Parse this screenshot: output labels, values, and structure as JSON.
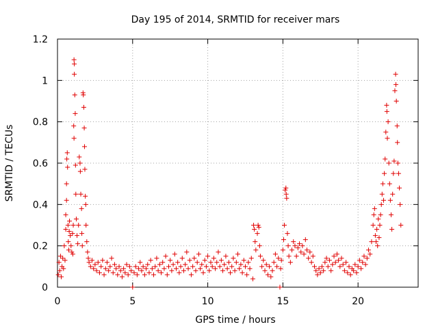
{
  "chart_data": {
    "type": "scatter",
    "title": "Day 195 of 2014, SRMTID for receiver mars",
    "xlabel": "GPS time / hours",
    "ylabel": "SRMTID / TECUs",
    "xlim": [
      0,
      24
    ],
    "ylim": [
      0,
      1.2
    ],
    "xticks": [
      0,
      5,
      10,
      15,
      20
    ],
    "xtick_labels": [
      "0",
      "5",
      "10",
      "15",
      "20"
    ],
    "yticks": [
      0,
      0.2,
      0.4,
      0.6,
      0.8,
      1.0,
      1.2
    ],
    "ytick_labels": [
      "0",
      "0.2",
      "0.4",
      "0.6",
      "0.8",
      "1",
      "1.2"
    ],
    "grid": true,
    "marker": "+",
    "color": "#e00000",
    "series": [
      {
        "name": "SRMTID",
        "points": [
          [
            0.05,
            0.06
          ],
          [
            0.1,
            0.12
          ],
          [
            0.15,
            0.08
          ],
          [
            0.2,
            0.15
          ],
          [
            0.25,
            0.05
          ],
          [
            0.3,
            0.1
          ],
          [
            0.35,
            0.14
          ],
          [
            0.4,
            0.09
          ],
          [
            0.45,
            0.2
          ],
          [
            0.5,
            0.13
          ],
          [
            0.55,
            0.35
          ],
          [
            0.55,
            0.28
          ],
          [
            0.6,
            0.5
          ],
          [
            0.6,
            0.42
          ],
          [
            0.62,
            0.62
          ],
          [
            0.65,
            0.65
          ],
          [
            0.67,
            0.58
          ],
          [
            0.7,
            0.3
          ],
          [
            0.72,
            0.22
          ],
          [
            0.75,
            0.18
          ],
          [
            0.78,
            0.27
          ],
          [
            0.8,
            0.32
          ],
          [
            0.85,
            0.25
          ],
          [
            0.9,
            0.2
          ],
          [
            0.95,
            0.17
          ],
          [
            1.0,
            0.26
          ],
          [
            1.02,
            0.16
          ],
          [
            1.05,
            0.3
          ],
          [
            1.08,
            0.78
          ],
          [
            1.1,
            0.72
          ],
          [
            1.1,
            1.1
          ],
          [
            1.12,
            1.08
          ],
          [
            1.12,
            1.03
          ],
          [
            1.15,
            0.93
          ],
          [
            1.18,
            0.84
          ],
          [
            1.2,
            0.59
          ],
          [
            1.22,
            0.45
          ],
          [
            1.25,
            0.33
          ],
          [
            1.3,
            0.25
          ],
          [
            1.35,
            0.21
          ],
          [
            1.4,
            0.3
          ],
          [
            1.45,
            0.63
          ],
          [
            1.5,
            0.6
          ],
          [
            1.52,
            0.56
          ],
          [
            1.55,
            0.45
          ],
          [
            1.6,
            0.38
          ],
          [
            1.62,
            0.26
          ],
          [
            1.65,
            0.2
          ],
          [
            1.7,
            0.94
          ],
          [
            1.72,
            0.93
          ],
          [
            1.75,
            0.87
          ],
          [
            1.78,
            0.77
          ],
          [
            1.8,
            0.68
          ],
          [
            1.82,
            0.57
          ],
          [
            1.85,
            0.44
          ],
          [
            1.88,
            0.4
          ],
          [
            1.9,
            0.3
          ],
          [
            1.95,
            0.22
          ],
          [
            2.0,
            0.17
          ],
          [
            2.05,
            0.14
          ],
          [
            2.1,
            0.12
          ],
          [
            2.2,
            0.1
          ],
          [
            2.3,
            0.13
          ],
          [
            2.4,
            0.09
          ],
          [
            2.5,
            0.11
          ],
          [
            2.6,
            0.08
          ],
          [
            2.7,
            0.12
          ],
          [
            2.8,
            0.07
          ],
          [
            2.9,
            0.1
          ],
          [
            3.0,
            0.13
          ],
          [
            3.1,
            0.06
          ],
          [
            3.2,
            0.09
          ],
          [
            3.3,
            0.12
          ],
          [
            3.4,
            0.08
          ],
          [
            3.5,
            0.1
          ],
          [
            3.6,
            0.14
          ],
          [
            3.7,
            0.07
          ],
          [
            3.8,
            0.11
          ],
          [
            3.9,
            0.09
          ],
          [
            4.0,
            0.06
          ],
          [
            4.1,
            0.1
          ],
          [
            4.2,
            0.08
          ],
          [
            4.3,
            0.05
          ],
          [
            4.4,
            0.09
          ],
          [
            4.5,
            0.07
          ],
          [
            4.6,
            0.11
          ],
          [
            4.7,
            0.06
          ],
          [
            4.8,
            0.1
          ],
          [
            4.9,
            0.08
          ],
          [
            5.0,
            0.0
          ],
          [
            5.1,
            0.07
          ],
          [
            5.2,
            0.1
          ],
          [
            5.3,
            0.06
          ],
          [
            5.4,
            0.09
          ],
          [
            5.5,
            0.12
          ],
          [
            5.6,
            0.08
          ],
          [
            5.7,
            0.1
          ],
          [
            5.8,
            0.06
          ],
          [
            5.9,
            0.09
          ],
          [
            6.0,
            0.11
          ],
          [
            6.1,
            0.07
          ],
          [
            6.2,
            0.13
          ],
          [
            6.3,
            0.09
          ],
          [
            6.4,
            0.06
          ],
          [
            6.5,
            0.1
          ],
          [
            6.6,
            0.14
          ],
          [
            6.7,
            0.08
          ],
          [
            6.8,
            0.11
          ],
          [
            6.9,
            0.07
          ],
          [
            7.0,
            0.12
          ],
          [
            7.1,
            0.09
          ],
          [
            7.2,
            0.15
          ],
          [
            7.3,
            0.06
          ],
          [
            7.4,
            0.1
          ],
          [
            7.5,
            0.13
          ],
          [
            7.6,
            0.08
          ],
          [
            7.7,
            0.11
          ],
          [
            7.8,
            0.16
          ],
          [
            7.9,
            0.09
          ],
          [
            8.0,
            0.12
          ],
          [
            8.1,
            0.07
          ],
          [
            8.2,
            0.1
          ],
          [
            8.3,
            0.14
          ],
          [
            8.4,
            0.08
          ],
          [
            8.5,
            0.11
          ],
          [
            8.6,
            0.17
          ],
          [
            8.7,
            0.09
          ],
          [
            8.8,
            0.13
          ],
          [
            8.9,
            0.06
          ],
          [
            9.0,
            0.1
          ],
          [
            9.1,
            0.14
          ],
          [
            9.2,
            0.08
          ],
          [
            9.3,
            0.12
          ],
          [
            9.4,
            0.16
          ],
          [
            9.5,
            0.09
          ],
          [
            9.6,
            0.11
          ],
          [
            9.7,
            0.07
          ],
          [
            9.8,
            0.13
          ],
          [
            9.9,
            0.1
          ],
          [
            10.0,
            0.15
          ],
          [
            10.1,
            0.08
          ],
          [
            10.2,
            0.12
          ],
          [
            10.3,
            0.1
          ],
          [
            10.4,
            0.14
          ],
          [
            10.5,
            0.09
          ],
          [
            10.6,
            0.12
          ],
          [
            10.7,
            0.17
          ],
          [
            10.8,
            0.1
          ],
          [
            10.9,
            0.13
          ],
          [
            11.0,
            0.08
          ],
          [
            11.1,
            0.11
          ],
          [
            11.2,
            0.15
          ],
          [
            11.3,
            0.09
          ],
          [
            11.4,
            0.12
          ],
          [
            11.5,
            0.07
          ],
          [
            11.6,
            0.1
          ],
          [
            11.7,
            0.14
          ],
          [
            11.8,
            0.08
          ],
          [
            11.9,
            0.12
          ],
          [
            12.0,
            0.16
          ],
          [
            12.1,
            0.09
          ],
          [
            12.2,
            0.11
          ],
          [
            12.3,
            0.07
          ],
          [
            12.4,
            0.13
          ],
          [
            12.5,
            0.1
          ],
          [
            12.6,
            0.06
          ],
          [
            12.7,
            0.12
          ],
          [
            12.8,
            0.09
          ],
          [
            12.9,
            0.14
          ],
          [
            13.0,
            0.04
          ],
          [
            13.05,
            0.3
          ],
          [
            13.1,
            0.28
          ],
          [
            13.15,
            0.22
          ],
          [
            13.2,
            0.18
          ],
          [
            13.3,
            0.26
          ],
          [
            13.35,
            0.3
          ],
          [
            13.4,
            0.29
          ],
          [
            13.45,
            0.2
          ],
          [
            13.5,
            0.15
          ],
          [
            13.6,
            0.1
          ],
          [
            13.7,
            0.13
          ],
          [
            13.8,
            0.08
          ],
          [
            13.9,
            0.11
          ],
          [
            14.0,
            0.06
          ],
          [
            14.1,
            0.1
          ],
          [
            14.2,
            0.05
          ],
          [
            14.3,
            0.08
          ],
          [
            14.4,
            0.12
          ],
          [
            14.5,
            0.16
          ],
          [
            14.6,
            0.1
          ],
          [
            14.7,
            0.14
          ],
          [
            14.8,
            0.0
          ],
          [
            14.85,
            0.09
          ],
          [
            14.9,
            0.13
          ],
          [
            15.0,
            0.18
          ],
          [
            15.05,
            0.23
          ],
          [
            15.1,
            0.3
          ],
          [
            15.15,
            0.47
          ],
          [
            15.2,
            0.48
          ],
          [
            15.22,
            0.45
          ],
          [
            15.25,
            0.43
          ],
          [
            15.3,
            0.26
          ],
          [
            15.35,
            0.2
          ],
          [
            15.4,
            0.15
          ],
          [
            15.5,
            0.12
          ],
          [
            15.6,
            0.18
          ],
          [
            15.7,
            0.22
          ],
          [
            15.8,
            0.2
          ],
          [
            15.9,
            0.15
          ],
          [
            16.0,
            0.19
          ],
          [
            16.1,
            0.21
          ],
          [
            16.2,
            0.17
          ],
          [
            16.3,
            0.2
          ],
          [
            16.4,
            0.16
          ],
          [
            16.5,
            0.23
          ],
          [
            16.6,
            0.18
          ],
          [
            16.7,
            0.14
          ],
          [
            16.8,
            0.17
          ],
          [
            16.9,
            0.12
          ],
          [
            17.0,
            0.15
          ],
          [
            17.1,
            0.1
          ],
          [
            17.2,
            0.08
          ],
          [
            17.3,
            0.06
          ],
          [
            17.4,
            0.09
          ],
          [
            17.5,
            0.07
          ],
          [
            17.6,
            0.1
          ],
          [
            17.7,
            0.08
          ],
          [
            17.8,
            0.12
          ],
          [
            17.9,
            0.14
          ],
          [
            18.0,
            0.1
          ],
          [
            18.1,
            0.13
          ],
          [
            18.2,
            0.08
          ],
          [
            18.3,
            0.11
          ],
          [
            18.4,
            0.15
          ],
          [
            18.5,
            0.12
          ],
          [
            18.6,
            0.16
          ],
          [
            18.7,
            0.13
          ],
          [
            18.8,
            0.1
          ],
          [
            18.9,
            0.14
          ],
          [
            19.0,
            0.11
          ],
          [
            19.1,
            0.08
          ],
          [
            19.2,
            0.12
          ],
          [
            19.3,
            0.07
          ],
          [
            19.4,
            0.1
          ],
          [
            19.5,
            0.06
          ],
          [
            19.6,
            0.09
          ],
          [
            19.7,
            0.08
          ],
          [
            19.8,
            0.11
          ],
          [
            19.9,
            0.07
          ],
          [
            20.0,
            0.1
          ],
          [
            20.1,
            0.13
          ],
          [
            20.2,
            0.09
          ],
          [
            20.3,
            0.12
          ],
          [
            20.4,
            0.15
          ],
          [
            20.5,
            0.11
          ],
          [
            20.6,
            0.14
          ],
          [
            20.7,
            0.18
          ],
          [
            20.8,
            0.16
          ],
          [
            20.9,
            0.22
          ],
          [
            21.0,
            0.3
          ],
          [
            21.05,
            0.35
          ],
          [
            21.1,
            0.38
          ],
          [
            21.15,
            0.25
          ],
          [
            21.2,
            0.22
          ],
          [
            21.25,
            0.28
          ],
          [
            21.3,
            0.2
          ],
          [
            21.35,
            0.33
          ],
          [
            21.4,
            0.24
          ],
          [
            21.45,
            0.3
          ],
          [
            21.5,
            0.35
          ],
          [
            21.55,
            0.4
          ],
          [
            21.6,
            0.45
          ],
          [
            21.65,
            0.5
          ],
          [
            21.7,
            0.42
          ],
          [
            21.75,
            0.55
          ],
          [
            21.8,
            0.62
          ],
          [
            21.85,
            0.75
          ],
          [
            21.9,
            0.88
          ],
          [
            21.92,
            0.85
          ],
          [
            21.95,
            0.72
          ],
          [
            22.0,
            0.8
          ],
          [
            22.05,
            0.6
          ],
          [
            22.1,
            0.5
          ],
          [
            22.15,
            0.42
          ],
          [
            22.2,
            0.35
          ],
          [
            22.25,
            0.28
          ],
          [
            22.3,
            0.45
          ],
          [
            22.35,
            0.55
          ],
          [
            22.4,
            0.61
          ],
          [
            22.45,
            0.95
          ],
          [
            22.5,
            1.03
          ],
          [
            22.52,
            0.98
          ],
          [
            22.55,
            0.9
          ],
          [
            22.6,
            0.78
          ],
          [
            22.62,
            0.7
          ],
          [
            22.65,
            0.6
          ],
          [
            22.7,
            0.55
          ],
          [
            22.75,
            0.48
          ],
          [
            22.8,
            0.4
          ],
          [
            22.85,
            0.3
          ]
        ]
      }
    ]
  }
}
